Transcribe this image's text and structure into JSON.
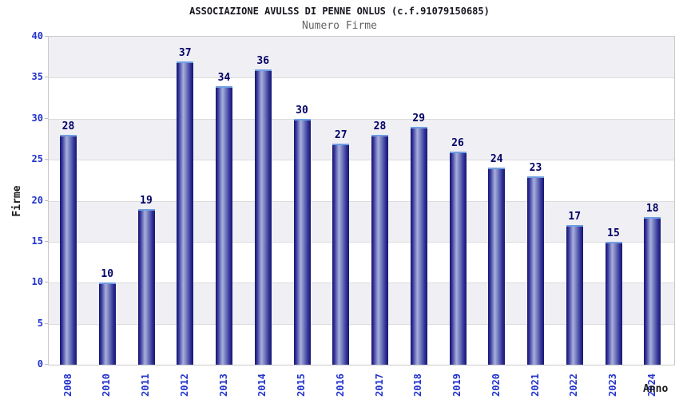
{
  "title": "ASSOCIAZIONE AVULSS DI PENNE ONLUS (c.f.91079150685)",
  "subtitle": "Numero Firme",
  "chart_data": {
    "type": "bar",
    "title": "ASSOCIAZIONE AVULSS DI PENNE ONLUS (c.f.91079150685)",
    "subtitle": "Numero Firme",
    "categories": [
      "2008",
      "2010",
      "2011",
      "2012",
      "2013",
      "2014",
      "2015",
      "2016",
      "2017",
      "2018",
      "2019",
      "2020",
      "2021",
      "2022",
      "2023",
      "2024"
    ],
    "values": [
      28,
      10,
      19,
      37,
      34,
      36,
      30,
      27,
      28,
      29,
      26,
      24,
      23,
      17,
      15,
      18
    ],
    "xlabel": "Anno",
    "ylabel": "Firme",
    "ylim": [
      0,
      40
    ],
    "yticks": [
      0,
      5,
      10,
      15,
      20,
      25,
      30,
      35,
      40
    ],
    "grid": true,
    "legend_position": "none",
    "colors": {
      "tick_label": "#2233cc",
      "value_label": "#000066",
      "title_text": "#161620",
      "subtitle_text": "#636363",
      "band_fill": "#f0eff4",
      "gridline": "#dcdcdc",
      "plot_border": "#c9c9c9",
      "tick_mark": "#b9b9c2",
      "bar_edge": "#17176b",
      "bar_mid": "#31319a",
      "bar_highlight": "#a8b0dc",
      "bar_cap": "#6f9fe2",
      "background": "#ffffff"
    }
  }
}
